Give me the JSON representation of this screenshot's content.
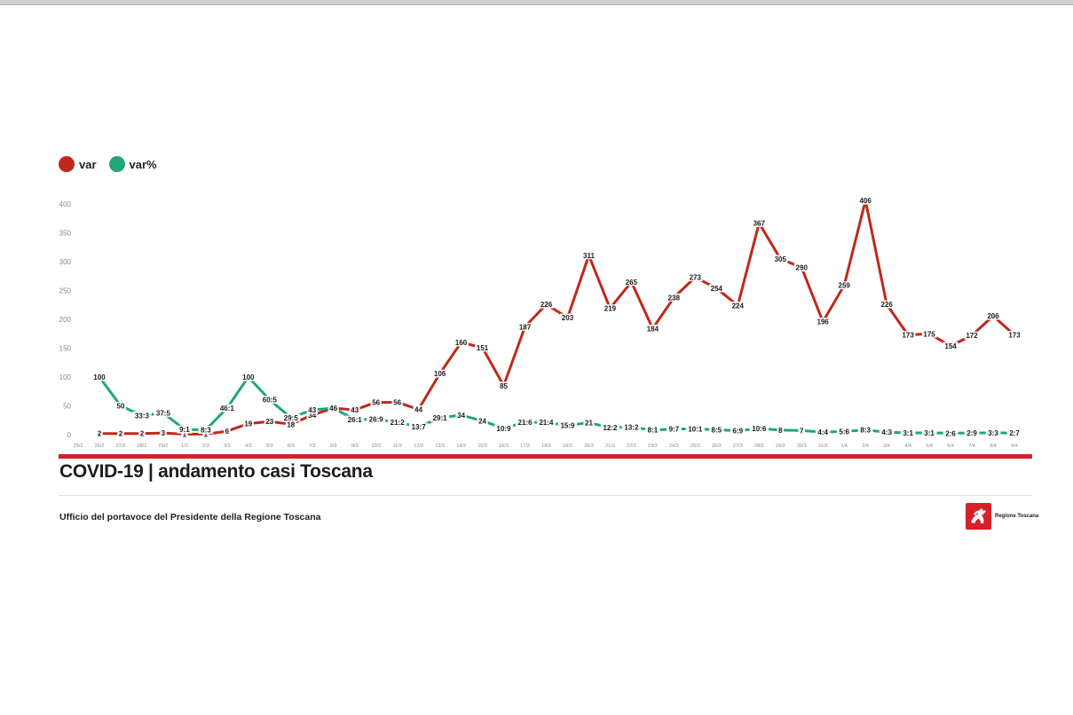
{
  "legend": [
    {
      "label": "var",
      "color": "#c0281b"
    },
    {
      "label": "var%",
      "color": "#1fa67a"
    }
  ],
  "title": "COVID-19 | andamento casi Toscana",
  "credit": "Ufficio del portavoce del Presidente della Regione Toscana",
  "logo": {
    "text": "Regione Toscana",
    "color": "#d6202a"
  },
  "colors": {
    "accent": "#d6202a",
    "var": "#c0281b",
    "var_pct": "#1fa67a",
    "axis": "#888888",
    "grid": "#e6e6e6"
  },
  "chart_data": {
    "type": "line",
    "ylim": [
      0,
      400
    ],
    "yticks": [
      0,
      50,
      100,
      150,
      200,
      250,
      300,
      350,
      400
    ],
    "grid": false,
    "legend_position": "top-left",
    "categories": [
      "25/2",
      "26/2",
      "27/2",
      "28/2",
      "29/2",
      "1/3",
      "2/3",
      "3/3",
      "4/3",
      "5/3",
      "6/3",
      "7/3",
      "8/3",
      "9/3",
      "10/3",
      "11/3",
      "12/3",
      "13/3",
      "14/3",
      "15/3",
      "16/3",
      "17/3",
      "18/3",
      "19/3",
      "20/3",
      "21/3",
      "22/3",
      "23/3",
      "24/3",
      "25/3",
      "26/3",
      "27/3",
      "28/3",
      "29/3",
      "30/3",
      "31/3",
      "1/4",
      "2/4",
      "3/4",
      "4/4",
      "5/4",
      "6/4",
      "7/4",
      "8/4",
      "9/4"
    ],
    "series": [
      {
        "name": "var",
        "values": [
          null,
          2,
          2,
          2,
          3,
          1,
          1,
          6,
          19,
          23,
          18,
          34,
          46,
          43,
          56,
          56,
          44,
          106,
          160,
          151,
          85,
          187,
          226,
          203,
          311,
          219,
          265,
          184,
          238,
          273,
          254,
          224,
          367,
          305,
          290,
          196,
          259,
          406,
          226,
          173,
          175,
          154,
          172,
          206,
          173
        ],
        "labels": [
          "",
          "2",
          "2",
          "2",
          "3",
          "1",
          "1",
          "6",
          "19",
          "23",
          "18",
          "34",
          "",
          "43",
          "56",
          "56",
          "44",
          "106",
          "160",
          "151",
          "85",
          "187",
          "226",
          "203",
          "311",
          "219",
          "265",
          "184",
          "238",
          "273",
          "254",
          "224",
          "367",
          "305",
          "290",
          "196",
          "259",
          "406",
          "226",
          "173",
          "175",
          "154",
          "172",
          "206",
          "173"
        ]
      },
      {
        "name": "var%",
        "values": [
          null,
          100,
          50,
          33.3,
          37.5,
          9.1,
          8.3,
          46.1,
          100,
          60.5,
          29.5,
          43,
          46,
          26.1,
          26.9,
          21.2,
          13.7,
          29.1,
          34,
          24,
          10.9,
          21.6,
          21.4,
          15.9,
          21,
          12.2,
          13.2,
          8.1,
          9.7,
          10.1,
          8.5,
          6.9,
          10.6,
          8,
          7,
          4.4,
          5.6,
          8.3,
          4.3,
          3.1,
          3.1,
          2.6,
          2.9,
          3.3,
          2.7
        ],
        "labels": [
          "",
          "100",
          "50",
          "33:3",
          "37:5",
          "9:1",
          "8:3",
          "46:1",
          "100",
          "60:5",
          "29:5",
          "43",
          "46",
          "26:1",
          "26:9",
          "21:2",
          "13:7",
          "29:1",
          "34",
          "24",
          "10:9",
          "21:6",
          "21:4",
          "15:9",
          "21",
          "12:2",
          "13:2",
          "8:1",
          "9:7",
          "10:1",
          "8:5",
          "6:9",
          "10:6",
          "8",
          "7",
          "4:4",
          "5:6",
          "8:3",
          "4:3",
          "3:1",
          "3:1",
          "2:6",
          "2:9",
          "3:3",
          "2:7"
        ]
      }
    ]
  }
}
